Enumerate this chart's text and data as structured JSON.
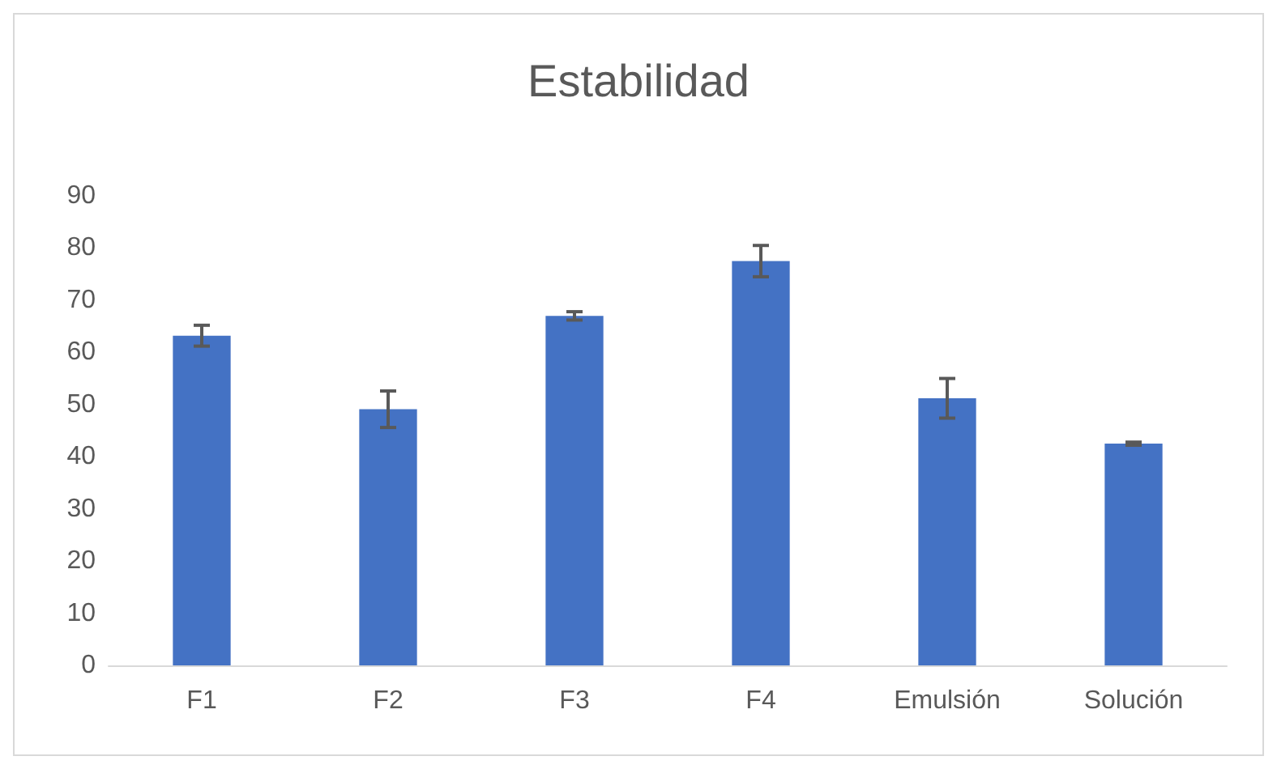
{
  "chart_data": {
    "type": "bar",
    "title": "Estabilidad",
    "categories": [
      "F1",
      "F2",
      "F3",
      "F4",
      "Emulsión",
      "Solución"
    ],
    "values": [
      63.2,
      49.1,
      67.0,
      77.5,
      51.2,
      42.5
    ],
    "errors": [
      2.0,
      3.5,
      0.8,
      3.0,
      3.8,
      0.3
    ],
    "color": "#4472c4",
    "ylim": [
      0,
      90
    ],
    "yticks": [
      0,
      10,
      20,
      30,
      40,
      50,
      60,
      70,
      80,
      90
    ],
    "grid": false
  }
}
